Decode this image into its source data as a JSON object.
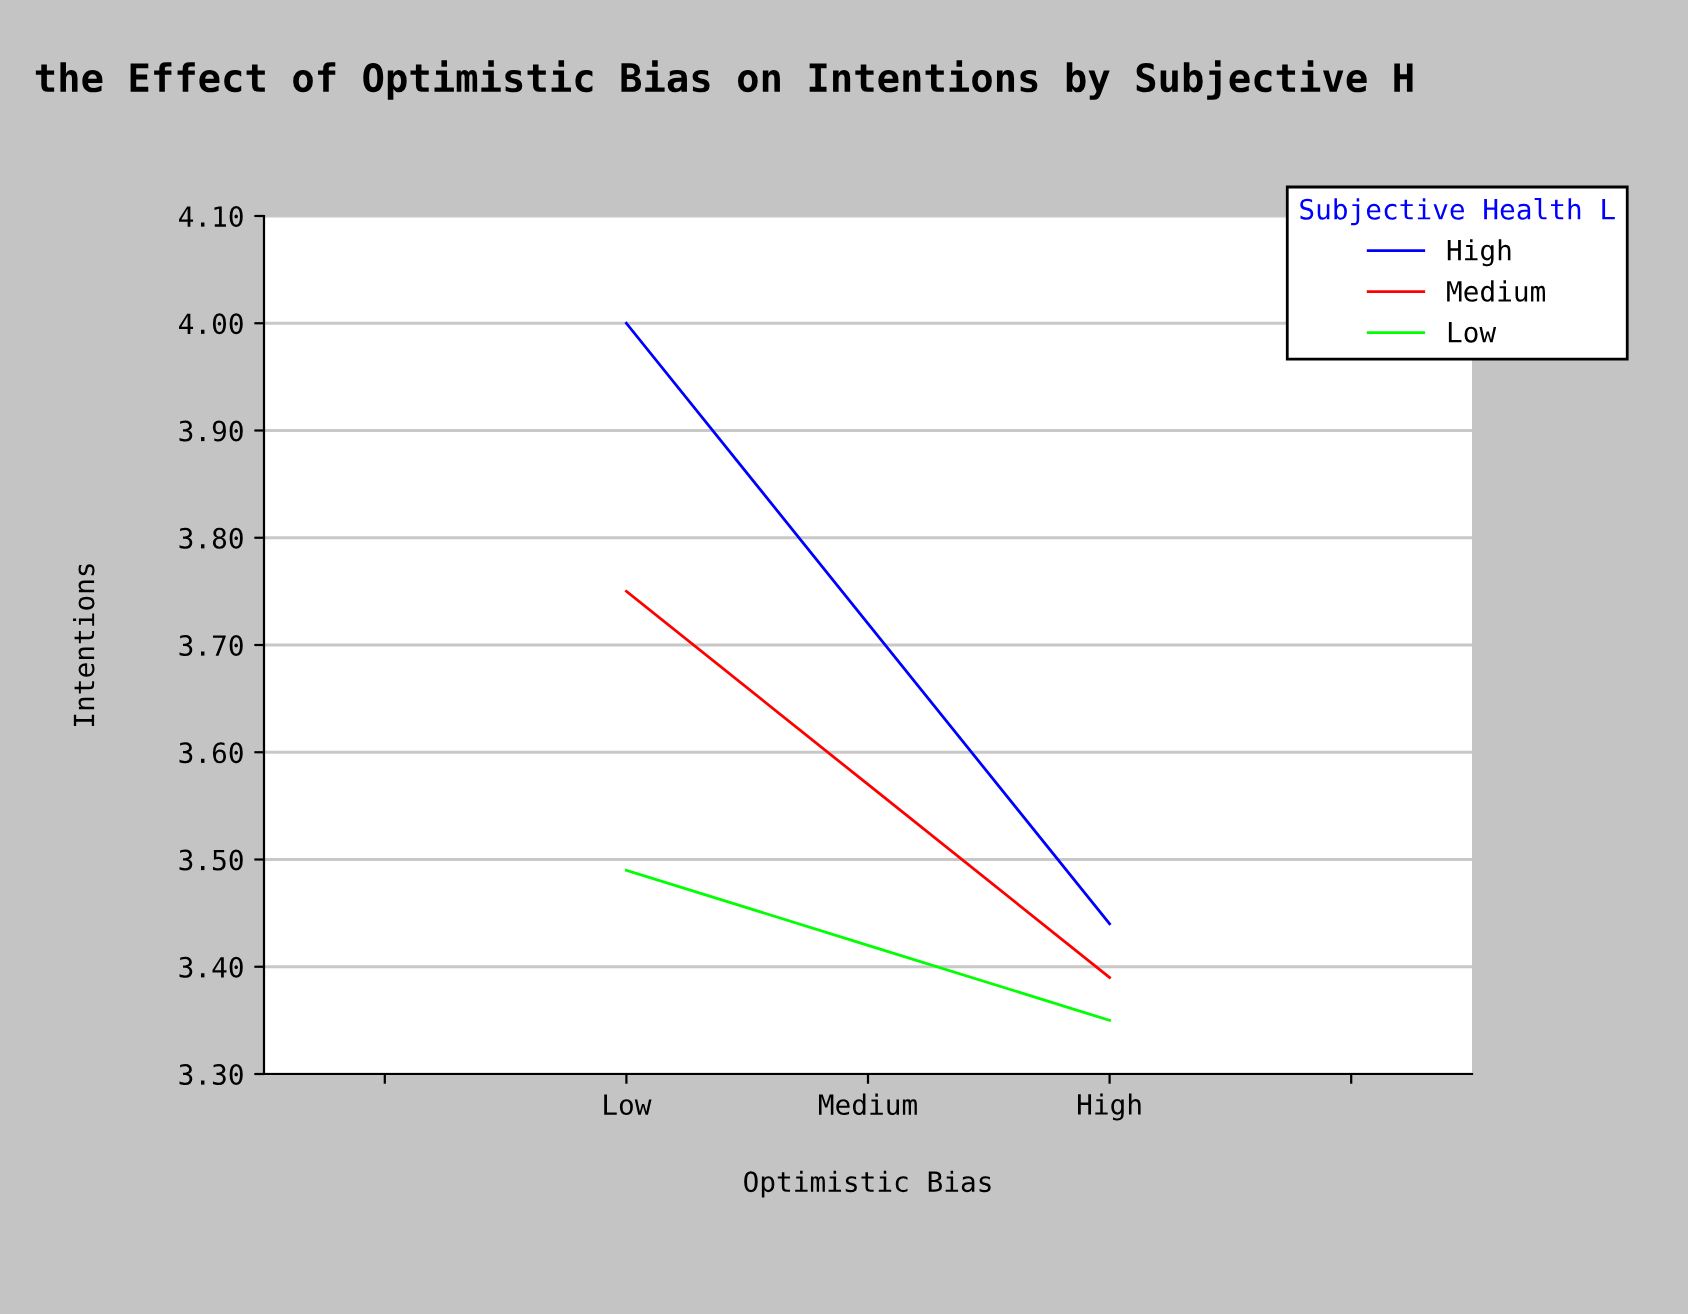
{
  "chart_data": {
    "type": "line",
    "title": "the Effect of Optimistic Bias on Intentions by Subjective H",
    "xlabel": "Optimistic Bias",
    "ylabel": "Intentions",
    "legend_title": "Subjective Health L",
    "categories": [
      null,
      "Low",
      "Medium",
      "High",
      null
    ],
    "series": [
      {
        "name": "High",
        "color": "#0000ff",
        "values": [
          null,
          4.0,
          3.72,
          3.44,
          null
        ]
      },
      {
        "name": "Medium",
        "color": "#ff0000",
        "values": [
          null,
          3.75,
          3.57,
          3.39,
          null
        ]
      },
      {
        "name": "Low",
        "color": "#00ff00",
        "values": [
          null,
          3.49,
          3.42,
          3.35,
          null
        ]
      }
    ],
    "ylim": [
      3.3,
      4.1
    ],
    "yticks": [
      {
        "value": 3.3,
        "label": "3.30"
      },
      {
        "value": 3.4,
        "label": "3.40"
      },
      {
        "value": 3.5,
        "label": "3.50"
      },
      {
        "value": 3.6,
        "label": "3.60"
      },
      {
        "value": 3.7,
        "label": "3.70"
      },
      {
        "value": 3.8,
        "label": "3.80"
      },
      {
        "value": 3.9,
        "label": "3.90"
      },
      {
        "value": 4.0,
        "label": "4.00"
      },
      {
        "value": 4.1,
        "label": "4.10"
      }
    ],
    "grid": "y",
    "legend": "top right",
    "marker": "none",
    "line_style": "solid"
  }
}
